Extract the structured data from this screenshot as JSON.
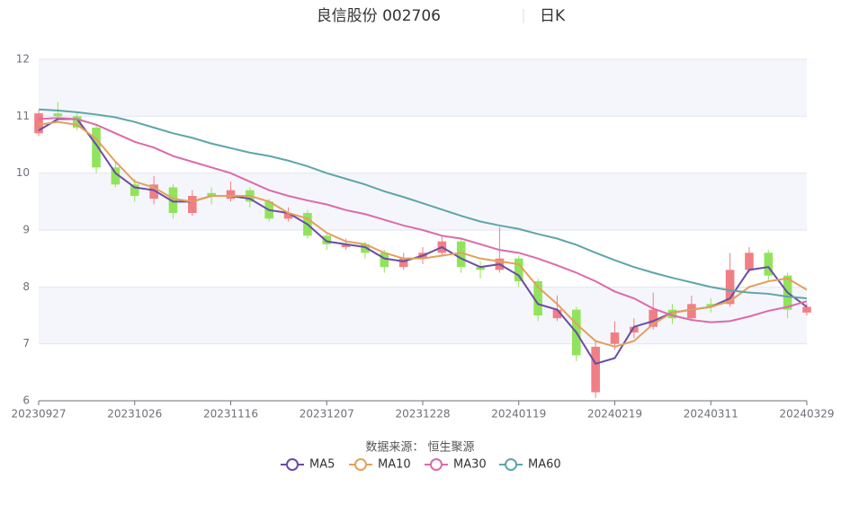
{
  "chart_data": {
    "type": "candlestick",
    "title": "良信股份 002706",
    "period": "日K",
    "source": "数据来源： 恒生聚源",
    "categories": [
      "20230927",
      null,
      null,
      null,
      null,
      "20231026",
      null,
      null,
      null,
      null,
      "20231116",
      null,
      null,
      null,
      null,
      "20231207",
      null,
      null,
      null,
      null,
      "20231228",
      null,
      null,
      null,
      null,
      "20240119",
      null,
      null,
      null,
      null,
      "20240219",
      null,
      null,
      null,
      null,
      "20240311",
      null,
      null,
      null,
      null,
      "20240329"
    ],
    "ohlc": [
      [
        10.7,
        11.1,
        10.65,
        11.05
      ],
      [
        11.05,
        11.25,
        10.9,
        11.0
      ],
      [
        11.0,
        11.05,
        10.75,
        10.8
      ],
      [
        10.8,
        10.85,
        10.0,
        10.1
      ],
      [
        10.1,
        10.2,
        9.75,
        9.8
      ],
      [
        9.8,
        9.9,
        9.5,
        9.6
      ],
      [
        9.55,
        9.95,
        9.45,
        9.8
      ],
      [
        9.75,
        9.8,
        9.2,
        9.3
      ],
      [
        9.3,
        9.7,
        9.25,
        9.6
      ],
      [
        9.65,
        9.75,
        9.45,
        9.6
      ],
      [
        9.55,
        9.85,
        9.5,
        9.7
      ],
      [
        9.7,
        9.75,
        9.4,
        9.5
      ],
      [
        9.5,
        9.55,
        9.15,
        9.2
      ],
      [
        9.2,
        9.4,
        9.15,
        9.3
      ],
      [
        9.3,
        9.35,
        8.85,
        8.9
      ],
      [
        8.9,
        8.95,
        8.65,
        8.75
      ],
      [
        8.7,
        8.85,
        8.65,
        8.75
      ],
      [
        8.75,
        8.8,
        8.5,
        8.6
      ],
      [
        8.6,
        8.65,
        8.25,
        8.35
      ],
      [
        8.35,
        8.6,
        8.3,
        8.5
      ],
      [
        8.5,
        8.7,
        8.4,
        8.6
      ],
      [
        8.6,
        8.9,
        8.55,
        8.8
      ],
      [
        8.8,
        8.85,
        8.25,
        8.35
      ],
      [
        8.35,
        8.45,
        8.15,
        8.3
      ],
      [
        8.3,
        9.05,
        8.25,
        8.5
      ],
      [
        8.5,
        8.55,
        8.0,
        8.1
      ],
      [
        8.1,
        8.15,
        7.4,
        7.5
      ],
      [
        7.45,
        7.85,
        7.4,
        7.6
      ],
      [
        7.6,
        7.65,
        6.7,
        6.8
      ],
      [
        6.15,
        7.05,
        6.05,
        6.95
      ],
      [
        7.0,
        7.4,
        6.9,
        7.2
      ],
      [
        7.2,
        7.45,
        7.1,
        7.3
      ],
      [
        7.3,
        7.9,
        7.25,
        7.6
      ],
      [
        7.6,
        7.7,
        7.35,
        7.45
      ],
      [
        7.45,
        7.85,
        7.4,
        7.7
      ],
      [
        7.7,
        7.8,
        7.55,
        7.65
      ],
      [
        7.7,
        8.6,
        7.65,
        8.3
      ],
      [
        8.3,
        8.7,
        8.25,
        8.6
      ],
      [
        8.6,
        8.65,
        8.1,
        8.2
      ],
      [
        8.2,
        8.25,
        7.45,
        7.6
      ],
      [
        7.55,
        7.7,
        7.5,
        7.65
      ]
    ],
    "up_color": "#f07f85",
    "down_color": "#91e35c",
    "series": [
      {
        "name": "MA5",
        "color": "#6a4ca8",
        "values": [
          10.75,
          10.95,
          10.95,
          10.5,
          10.0,
          9.75,
          9.7,
          9.5,
          9.5,
          9.6,
          9.6,
          9.55,
          9.35,
          9.3,
          9.1,
          8.8,
          8.75,
          8.7,
          8.5,
          8.45,
          8.55,
          8.7,
          8.5,
          8.35,
          8.4,
          8.2,
          7.7,
          7.6,
          7.2,
          6.65,
          6.75,
          7.3,
          7.4,
          7.55,
          7.6,
          7.65,
          7.8,
          8.3,
          8.35,
          7.9,
          7.65
        ]
      },
      {
        "name": "MA10",
        "color": "#e3a05c",
        "values": [
          10.85,
          10.9,
          10.85,
          10.6,
          10.2,
          9.85,
          9.75,
          9.55,
          9.5,
          9.6,
          9.6,
          9.6,
          9.5,
          9.3,
          9.2,
          8.95,
          8.8,
          8.75,
          8.6,
          8.5,
          8.5,
          8.55,
          8.6,
          8.5,
          8.45,
          8.4,
          8.0,
          7.7,
          7.35,
          7.05,
          6.95,
          7.05,
          7.35,
          7.55,
          7.6,
          7.65,
          7.75,
          8.0,
          8.1,
          8.15,
          7.95
        ]
      },
      {
        "name": "MA30",
        "color": "#dc6aa9",
        "values": [
          10.95,
          10.97,
          10.95,
          10.85,
          10.7,
          10.55,
          10.45,
          10.3,
          10.2,
          10.1,
          10.0,
          9.85,
          9.7,
          9.6,
          9.52,
          9.45,
          9.35,
          9.28,
          9.18,
          9.08,
          9.0,
          8.9,
          8.85,
          8.75,
          8.65,
          8.6,
          8.5,
          8.38,
          8.25,
          8.1,
          7.92,
          7.8,
          7.62,
          7.5,
          7.42,
          7.38,
          7.4,
          7.48,
          7.58,
          7.65,
          7.75
        ]
      },
      {
        "name": "MA60",
        "color": "#5ea5a8",
        "values": [
          11.12,
          11.1,
          11.07,
          11.03,
          10.98,
          10.9,
          10.8,
          10.7,
          10.62,
          10.52,
          10.44,
          10.36,
          10.3,
          10.22,
          10.12,
          10.0,
          9.9,
          9.8,
          9.68,
          9.58,
          9.47,
          9.36,
          9.25,
          9.15,
          9.08,
          9.02,
          8.93,
          8.85,
          8.74,
          8.6,
          8.47,
          8.35,
          8.25,
          8.16,
          8.08,
          8.0,
          7.94,
          7.9,
          7.88,
          7.83,
          7.8
        ]
      }
    ],
    "ylim": [
      6,
      12
    ],
    "yticks": [
      6,
      7,
      8,
      9,
      10,
      11,
      12
    ],
    "grid": true,
    "split_area": true,
    "legend": "bottom"
  }
}
